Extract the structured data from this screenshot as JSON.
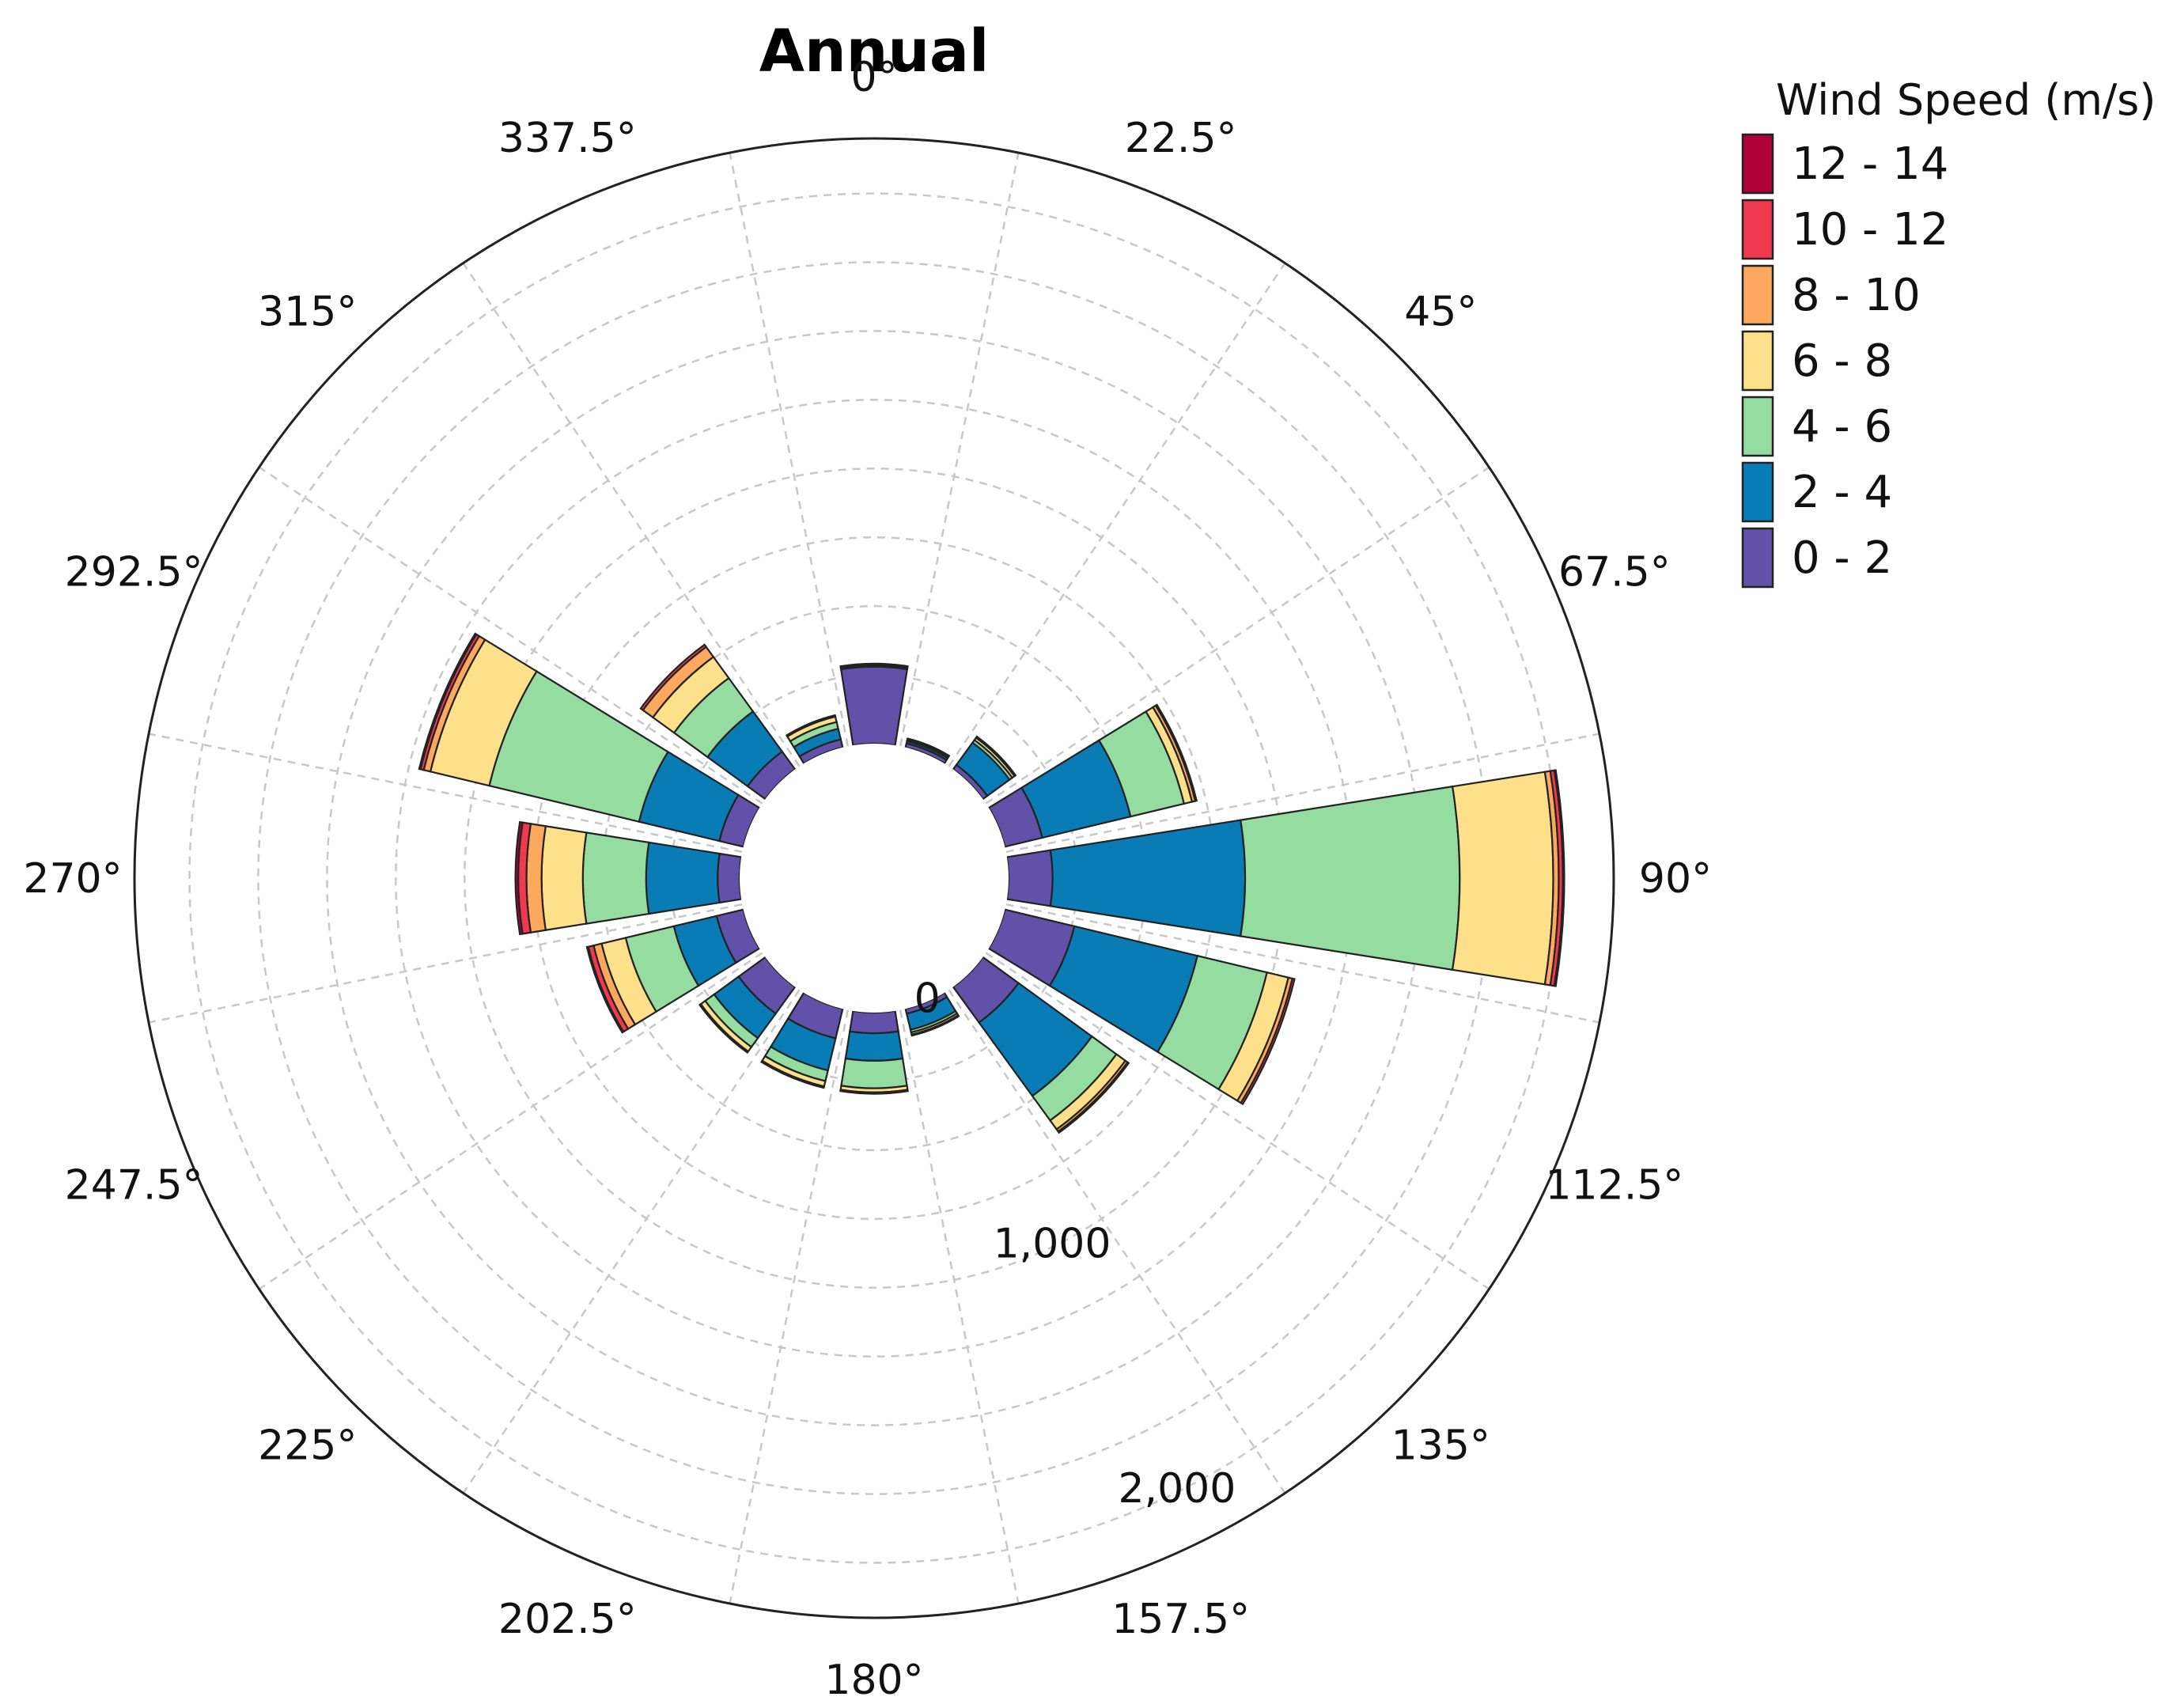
{
  "chart_data": {
    "type": "windrose",
    "title": "Annual",
    "legend": {
      "title": "Wind Speed (m/s)",
      "placement": "top-right",
      "bins": [
        {
          "label": "12 - 14",
          "color": "#b0003a"
        },
        {
          "label": "10 - 12",
          "color": "#f0394f"
        },
        {
          "label": "8 - 10",
          "color": "#fca85e"
        },
        {
          "label": "6 - 8",
          "color": "#fee08b"
        },
        {
          "label": "4 - 6",
          "color": "#94dca0"
        },
        {
          "label": "2 - 4",
          "color": "#0a7cb5"
        },
        {
          "label": "0 - 2",
          "color": "#6251a8"
        }
      ]
    },
    "direction_labels": [
      "0°",
      "22.5°",
      "45°",
      "67.5°",
      "90°",
      "112.5°",
      "135°",
      "157.5°",
      "180°",
      "202.5°",
      "225°",
      "247.5°",
      "270°",
      "292.5°",
      "315°",
      "337.5°"
    ],
    "radial_axis": {
      "ticks": [
        0,
        1000,
        2000
      ],
      "tick_labels": [
        "0",
        "1,000",
        "2,000"
      ],
      "max": 2200,
      "label_angle_deg": 153
    },
    "speed_bins": [
      "0 - 2",
      "2 - 4",
      "4 - 6",
      "6 - 8",
      "8 - 10",
      "10 - 12",
      "12 - 14"
    ],
    "directions": [
      {
        "angle": 0,
        "counts": [
          280,
          5,
          3,
          2,
          1,
          0,
          0
        ]
      },
      {
        "angle": 22.5,
        "counts": [
          15,
          8,
          5,
          3,
          2,
          0,
          0
        ]
      },
      {
        "angle": 45,
        "counts": [
          20,
          100,
          12,
          10,
          3,
          2,
          0
        ]
      },
      {
        "angle": 67.5,
        "counts": [
          140,
          330,
          200,
          30,
          12,
          5,
          0
        ]
      },
      {
        "angle": 90,
        "counts": [
          160,
          700,
          780,
          340,
          20,
          15,
          5
        ]
      },
      {
        "angle": 112.5,
        "counts": [
          260,
          460,
          260,
          80,
          15,
          8,
          0
        ]
      },
      {
        "angle": 135,
        "counts": [
          160,
          330,
          110,
          40,
          10,
          5,
          0
        ]
      },
      {
        "angle": 157.5,
        "counts": [
          18,
          60,
          10,
          8,
          4,
          0,
          0
        ]
      },
      {
        "angle": 180,
        "counts": [
          75,
          100,
          100,
          15,
          5,
          0,
          0
        ]
      },
      {
        "angle": 202.5,
        "counts": [
          110,
          120,
          40,
          20,
          5,
          0,
          0
        ]
      },
      {
        "angle": 225,
        "counts": [
          120,
          110,
          40,
          20,
          5,
          0,
          0
        ]
      },
      {
        "angle": 247.5,
        "counts": [
          100,
          160,
          180,
          90,
          30,
          20,
          5
        ]
      },
      {
        "angle": 270,
        "counts": [
          80,
          260,
          230,
          150,
          55,
          30,
          10
        ]
      },
      {
        "angle": 292.5,
        "counts": [
          90,
          300,
          560,
          220,
          25,
          12,
          5
        ]
      },
      {
        "angle": 315,
        "counts": [
          80,
          180,
          150,
          95,
          45,
          10,
          0
        ]
      },
      {
        "angle": 337.5,
        "counts": [
          30,
          40,
          25,
          20,
          5,
          0,
          0
        ]
      }
    ]
  }
}
